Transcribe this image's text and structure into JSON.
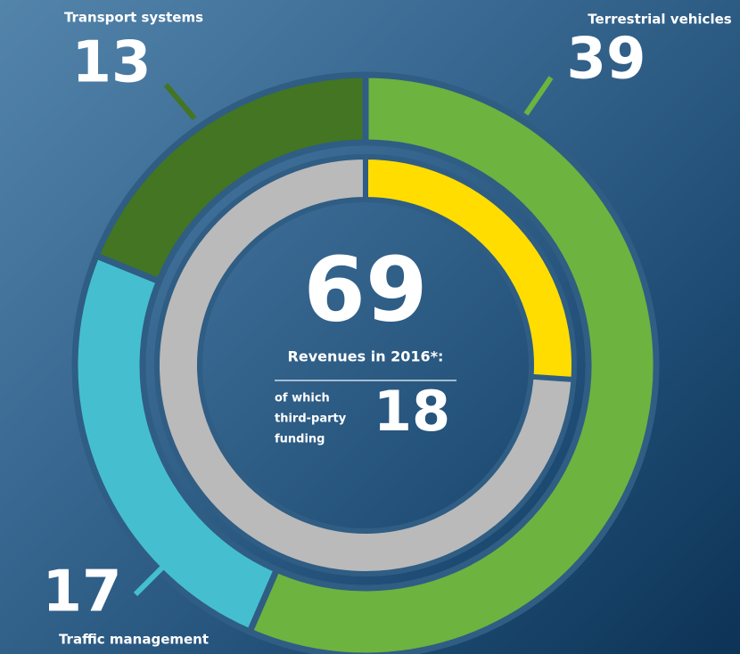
{
  "chart_data": {
    "type": "donut",
    "categories": [
      "Terrestrial vehicles",
      "Traffic management",
      "Transport systems"
    ],
    "values": [
      39,
      17,
      13
    ],
    "colors": [
      "#6db33f",
      "#45bfd0",
      "#437523"
    ],
    "total": 69,
    "total_label": "Revenues in 2016*:",
    "sub_label": [
      "of which",
      "third-party",
      "funding"
    ],
    "sub_value": 18,
    "sub_color": "#ffdd00",
    "remainder_color": "#bababa"
  }
}
